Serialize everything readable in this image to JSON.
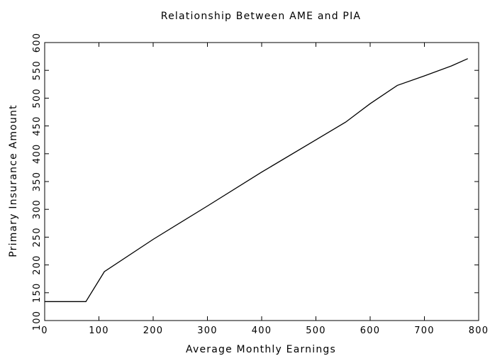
{
  "chart_data": {
    "type": "line",
    "title": "Relationship Between AME and PIA",
    "xlabel": "Average Monthly Earnings",
    "ylabel": "Primary Insurance Amount",
    "xlim": [
      0,
      800
    ],
    "ylim": [
      100,
      600
    ],
    "xticks": [
      0,
      100,
      200,
      300,
      400,
      500,
      600,
      700,
      800
    ],
    "yticks": [
      100,
      150,
      200,
      250,
      300,
      350,
      400,
      450,
      500,
      550,
      600
    ],
    "grid": false,
    "legend": "none",
    "series": [
      {
        "x": [
          0,
          76,
          110,
          200,
          300,
          400,
          500,
          555,
          600,
          650,
          700,
          750,
          780
        ],
        "y": [
          134,
          134,
          188,
          246,
          306,
          367,
          425,
          457,
          490,
          523,
          540,
          558,
          571
        ]
      }
    ]
  }
}
